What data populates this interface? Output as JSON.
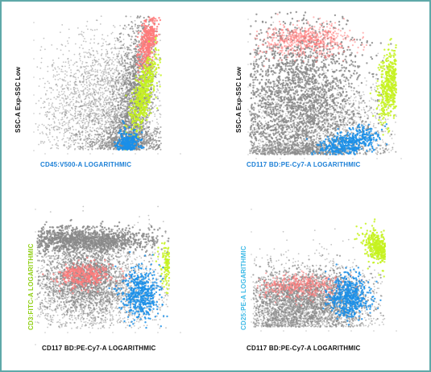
{
  "colors": {
    "debris": "#8a8a8a",
    "red_population": "#ff7a7a",
    "green_population": "#c6f21e",
    "blue_population": "#1b8fe8",
    "label_black": "#111111",
    "label_blue": "#1b7fd6",
    "label_green": "#8fcf12",
    "label_cyan": "#3bb9e6",
    "frame": "#5fa8a8"
  },
  "panels": [
    {
      "xlabel": "CD45:V500-A LOGARITHMIC",
      "xlabel_color": "blue",
      "ylabel": "SSC-A Exp-SSC Low",
      "ylabel_color": "black"
    },
    {
      "xlabel": "CD117 BD:PE-Cy7-A LOGARITHMIC",
      "xlabel_color": "blue",
      "ylabel": "SSC-A Exp-SSC Low",
      "ylabel_color": "black"
    },
    {
      "xlabel": "CD117 BD:PE-Cy7-A LOGARITHMIC",
      "xlabel_color": "black",
      "ylabel": "CD3:FITC-A LOGARITHMIC",
      "ylabel_color": "green"
    },
    {
      "xlabel": "CD117 BD:PE-Cy7-A LOGARITHMIC",
      "xlabel_color": "black",
      "ylabel": "CD25:PE-A LOGARITHMIC",
      "ylabel_color": "cyan"
    }
  ],
  "chart_data": [
    {
      "type": "scatter",
      "xlabel": "CD45:V500-A LOGARITHMIC",
      "ylabel": "SSC-A Exp-SSC Low",
      "series": [
        {
          "color": "gray"
        },
        {
          "color": "red"
        },
        {
          "color": "green"
        },
        {
          "color": "blue"
        }
      ]
    },
    {
      "type": "scatter",
      "xlabel": "CD117 BD:PE-Cy7-A LOGARITHMIC",
      "ylabel": "SSC-A Exp-SSC Low",
      "series": [
        {
          "color": "gray"
        },
        {
          "color": "red"
        },
        {
          "color": "green"
        },
        {
          "color": "blue"
        }
      ]
    },
    {
      "type": "scatter",
      "xlabel": "CD117 BD:PE-Cy7-A LOGARITHMIC",
      "ylabel": "CD3:FITC-A LOGARITHMIC",
      "series": [
        {
          "color": "gray"
        },
        {
          "color": "red"
        },
        {
          "color": "green"
        },
        {
          "color": "blue"
        }
      ]
    },
    {
      "type": "scatter",
      "xlabel": "CD117 BD:PE-Cy7-A LOGARITHMIC",
      "ylabel": "CD25:PE-A LOGARITHMIC",
      "series": [
        {
          "color": "gray"
        },
        {
          "color": "red"
        },
        {
          "color": "green"
        },
        {
          "color": "blue"
        }
      ]
    }
  ]
}
